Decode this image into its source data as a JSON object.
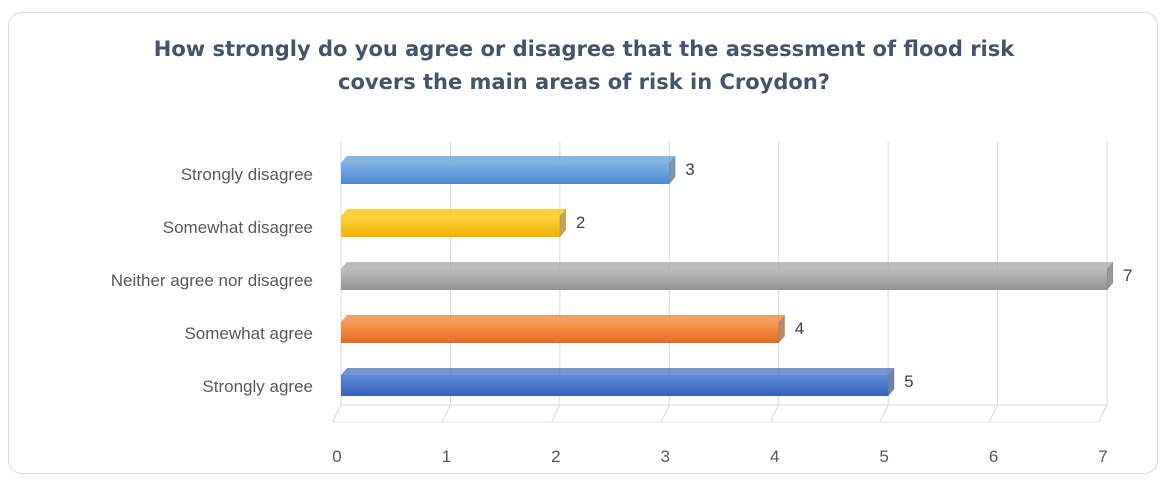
{
  "chart_data": {
    "type": "bar",
    "orientation": "horizontal",
    "title_lines": [
      "How strongly do you agree or disagree that the assessment of flood risk",
      "covers the main areas of risk in Croydon?"
    ],
    "categories": [
      "Strongly disagree",
      "Somewhat disagree",
      "Neither agree nor disagree",
      "Somewhat agree",
      "Strongly agree"
    ],
    "values": [
      3,
      2,
      7,
      4,
      5
    ],
    "colors": [
      "#5b9bd5",
      "#ffc000",
      "#a5a5a5",
      "#ed7d31",
      "#4472c4"
    ],
    "xlim": [
      0,
      7
    ],
    "x_ticks": [
      "0",
      "1",
      "2",
      "3",
      "4",
      "5",
      "6",
      "7"
    ],
    "grid": true,
    "legend": "none",
    "data_labels": true,
    "style": "3d"
  }
}
